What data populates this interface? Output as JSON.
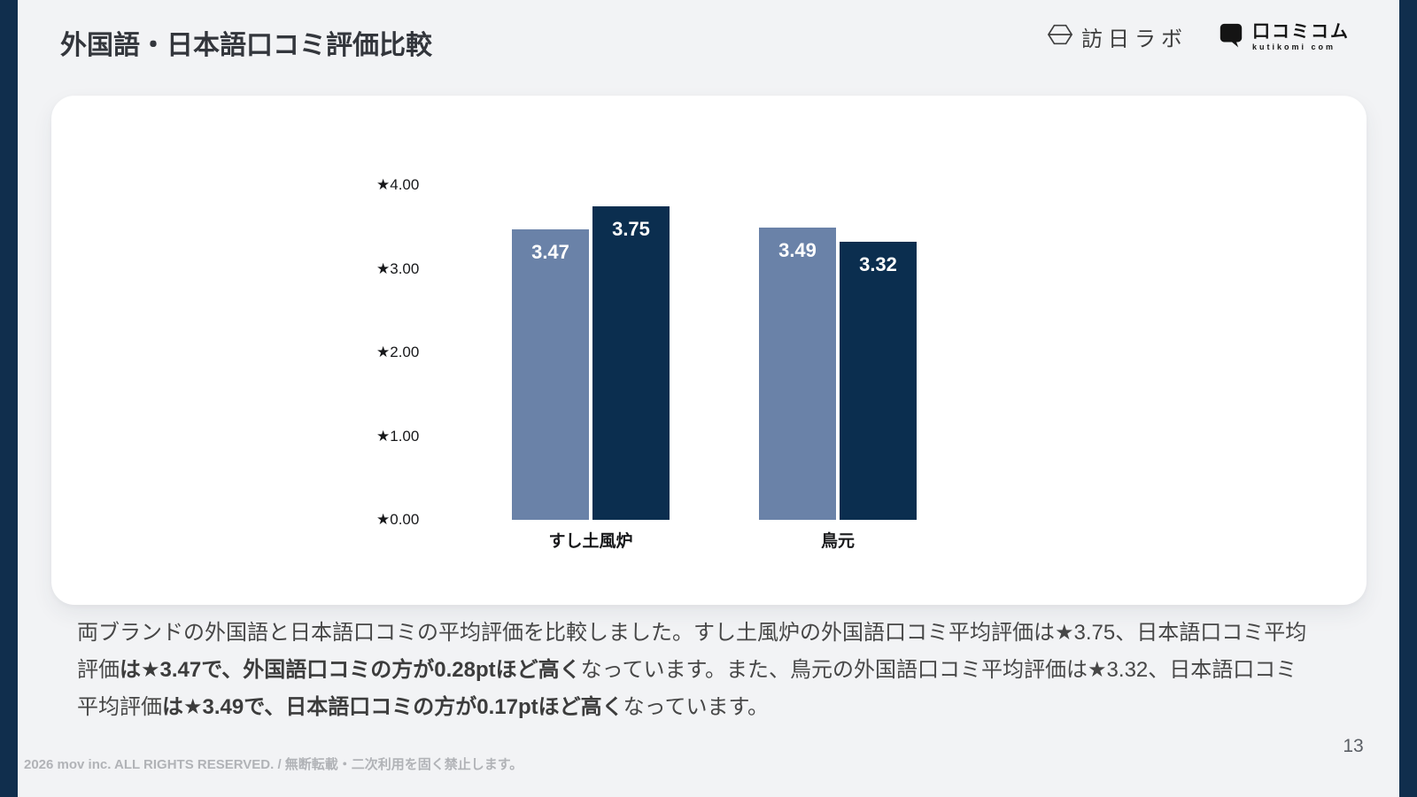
{
  "header": {
    "title": "外国語・日本語口コミ評価比較",
    "logos": {
      "honichi_text": "訪日ラボ",
      "kutikomi_text": "口コミコム",
      "kutikomi_subtext": "kutikomi com"
    }
  },
  "chart_data": {
    "type": "bar",
    "title": "",
    "categories": [
      "すし土風炉",
      "鳥元"
    ],
    "series": [
      {
        "name": "日本語口コミ平均評価",
        "color": "#6a82a8",
        "values": [
          3.47,
          3.49
        ]
      },
      {
        "name": "外国語口コミ平均評価",
        "color": "#0b2e4f",
        "values": [
          3.75,
          3.32
        ]
      }
    ],
    "y_axis": {
      "min": 0,
      "max": 4,
      "ticks": [
        {
          "label": "★4.00",
          "value": 4
        },
        {
          "label": "★3.00",
          "value": 3
        },
        {
          "label": "★2.00",
          "value": 2
        },
        {
          "label": "★1.00",
          "value": 1
        },
        {
          "label": "★0.00",
          "value": 0
        }
      ]
    },
    "grid": false,
    "legend_position": "none",
    "value_label_color": "#ffffff"
  },
  "summary": {
    "segments": [
      {
        "text": "両ブランドの外国語と日本語口コミの平均評価を比較しました。すし土風炉の外国語口コミ平均評価は★3.75、日本語口コミ平均評価",
        "bold": false
      },
      {
        "text": "は★3.47で、外国語口コミの方が0.28ptほど高く",
        "bold": true
      },
      {
        "text": "なっています。また、鳥元の外国語口コミ平均評価は★3.32、日本語口コミ平均評価",
        "bold": false
      },
      {
        "text": "は★3.49で、日本語口コミの方が0.17ptほど高く",
        "bold": true
      },
      {
        "text": "なっています。",
        "bold": false
      }
    ]
  },
  "footer": {
    "text": "2026 mov inc. ALL RIGHTS RESERVED. / 無断転載・二次利用を固く禁止します。",
    "page_number": "13"
  },
  "colors": {
    "background": "#f2f3f5",
    "edge_bar": "#102e4d",
    "bar_light_blue": "#6a82a8",
    "bar_dark_navy": "#0b2e4f"
  }
}
